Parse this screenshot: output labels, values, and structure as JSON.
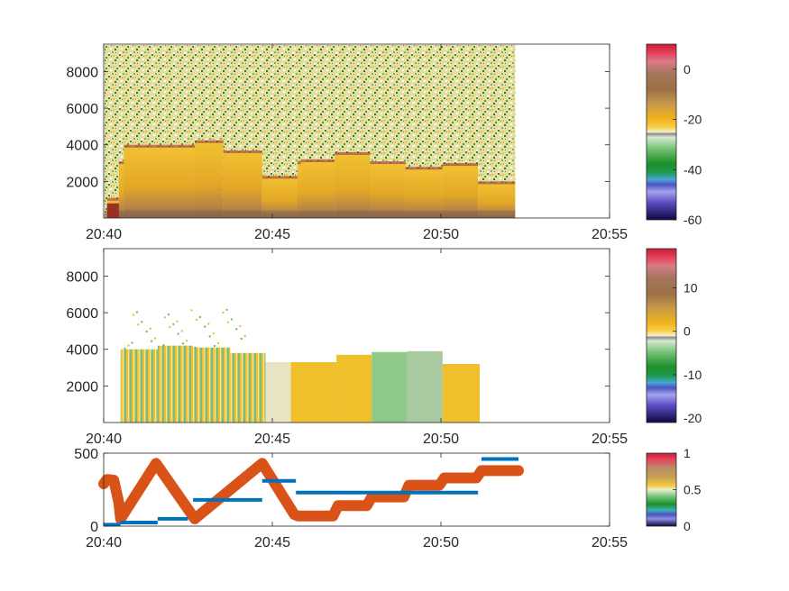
{
  "chart_data": [
    {
      "type": "heatmap",
      "title": "",
      "xlabel": "",
      "ylabel": "",
      "x_ticks": [
        "20:40",
        "20:45",
        "20:50",
        "20:55"
      ],
      "x_tick_minutes": [
        0,
        5,
        10,
        15
      ],
      "xlim_minutes": [
        0,
        15
      ],
      "y_ticks": [
        2000,
        4000,
        6000,
        8000
      ],
      "ylim": [
        0,
        9500
      ],
      "data_end_minute": 12.2,
      "colorbar": {
        "ticks": [
          0,
          -20,
          -40,
          -60
        ],
        "range": [
          -60,
          10
        ]
      },
      "segments": [
        {
          "start": 0.1,
          "end": 0.45,
          "top": 1000
        },
        {
          "start": 0.45,
          "end": 0.6,
          "top": 3000
        },
        {
          "start": 0.6,
          "end": 1.35,
          "top": 3900
        },
        {
          "start": 1.35,
          "end": 2.7,
          "top": 3900
        },
        {
          "start": 2.7,
          "end": 3.55,
          "top": 4150
        },
        {
          "start": 3.55,
          "end": 4.7,
          "top": 3600
        },
        {
          "start": 4.7,
          "end": 5.75,
          "top": 2200
        },
        {
          "start": 5.75,
          "end": 5.85,
          "top": 3000
        },
        {
          "start": 5.85,
          "end": 6.85,
          "top": 3100
        },
        {
          "start": 6.85,
          "end": 7.9,
          "top": 3500
        },
        {
          "start": 7.9,
          "end": 8.95,
          "top": 3000
        },
        {
          "start": 8.95,
          "end": 10.05,
          "top": 2700
        },
        {
          "start": 10.05,
          "end": 11.1,
          "top": 2900
        },
        {
          "start": 11.1,
          "end": 12.2,
          "top": 1900
        }
      ]
    },
    {
      "type": "heatmap",
      "title": "",
      "xlabel": "",
      "ylabel": "",
      "x_ticks": [
        "20:40",
        "20:45",
        "20:50",
        "20:55"
      ],
      "x_tick_minutes": [
        0,
        5,
        10,
        15
      ],
      "xlim_minutes": [
        0,
        15
      ],
      "y_ticks": [
        2000,
        4000,
        6000,
        8000
      ],
      "ylim": [
        0,
        9500
      ],
      "colorbar": {
        "ticks": [
          10,
          0,
          -10,
          -20
        ],
        "range": [
          -21,
          19
        ]
      },
      "segments": [
        {
          "start": 0.5,
          "end": 1.6,
          "top": 4000,
          "tone": "mixed"
        },
        {
          "start": 1.6,
          "end": 2.65,
          "top": 4200,
          "tone": "mixed"
        },
        {
          "start": 2.65,
          "end": 3.75,
          "top": 4100,
          "tone": "mixed"
        },
        {
          "start": 3.75,
          "end": 4.8,
          "top": 3800,
          "tone": "mixed"
        },
        {
          "start": 4.8,
          "end": 5.55,
          "top": 3300,
          "tone": "pale"
        },
        {
          "start": 5.55,
          "end": 6.9,
          "top": 3300,
          "tone": "yellow"
        },
        {
          "start": 6.9,
          "end": 7.95,
          "top": 3700,
          "tone": "yellow"
        },
        {
          "start": 7.95,
          "end": 9.0,
          "top": 3850,
          "tone": "green"
        },
        {
          "start": 9.0,
          "end": 10.05,
          "top": 3900,
          "tone": "gray"
        },
        {
          "start": 10.05,
          "end": 11.15,
          "top": 3200,
          "tone": "yellow"
        }
      ]
    },
    {
      "type": "scatter",
      "title": "",
      "xlabel": "",
      "ylabel": "",
      "x_ticks": [
        "20:40",
        "20:45",
        "20:50",
        "20:55"
      ],
      "x_tick_minutes": [
        0,
        5,
        10,
        15
      ],
      "xlim_minutes": [
        0,
        15
      ],
      "y_ticks": [
        0,
        500
      ],
      "ylim": [
        0,
        500
      ],
      "colorbar": {
        "ticks": [
          1,
          0.5,
          0
        ],
        "range": [
          0,
          1
        ]
      },
      "series": [
        {
          "color": "#d95319",
          "x": [
            0.0,
            0.1,
            0.3,
            0.45,
            0.5,
            1.55,
            2.7,
            4.7,
            5.65,
            5.75,
            6.8,
            6.95,
            7.8,
            7.95,
            8.9,
            9.05,
            9.95,
            10.1,
            11.05,
            11.2,
            12.3
          ],
          "y": [
            290,
            320,
            315,
            160,
            50,
            430,
            50,
            430,
            80,
            70,
            70,
            140,
            140,
            200,
            200,
            280,
            280,
            330,
            330,
            380,
            380
          ]
        },
        {
          "color": "#0072bd",
          "segments": [
            {
              "x0": 0.0,
              "x1": 0.5,
              "y": 10
            },
            {
              "x0": 0.5,
              "x1": 1.6,
              "y": 25
            },
            {
              "x0": 1.6,
              "x1": 2.5,
              "y": 50
            },
            {
              "x0": 2.65,
              "x1": 4.7,
              "y": 180
            },
            {
              "x0": 4.7,
              "x1": 5.7,
              "y": 310
            },
            {
              "x0": 5.7,
              "x1": 9.8,
              "y": 230
            },
            {
              "x0": 9.8,
              "x1": 11.1,
              "y": 230
            },
            {
              "x0": 11.2,
              "x1": 12.3,
              "y": 460
            }
          ]
        }
      ]
    }
  ]
}
